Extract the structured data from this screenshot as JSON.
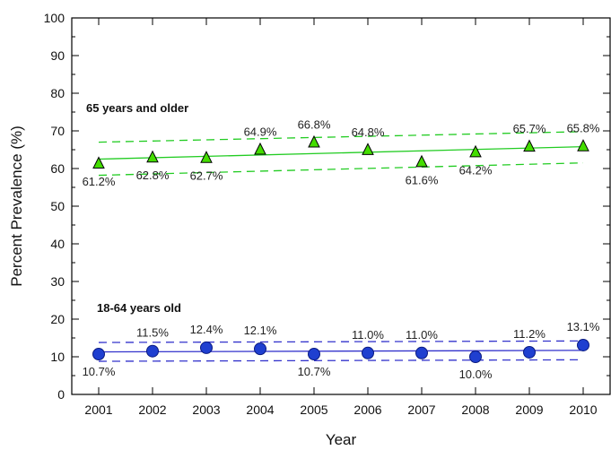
{
  "chart_data": {
    "type": "scatter",
    "title": "",
    "xlabel": "Year",
    "ylabel": "Percent Prevalence (%)",
    "x": [
      2001,
      2002,
      2003,
      2004,
      2005,
      2006,
      2007,
      2008,
      2009,
      2010
    ],
    "xlim": [
      2000.5,
      2010.5
    ],
    "ylim": [
      0,
      100
    ],
    "yticks": [
      0,
      10,
      20,
      30,
      40,
      50,
      60,
      70,
      80,
      90,
      100
    ],
    "grid": false,
    "series": [
      {
        "name": "65 years and older",
        "marker": "triangle",
        "color": "#22cc22",
        "marker_color": "#44dd00",
        "values": [
          61.2,
          62.8,
          62.7,
          64.9,
          66.8,
          64.8,
          61.6,
          64.2,
          65.7,
          65.8
        ],
        "labels": [
          "61.2%",
          "62.8%",
          "62.7%",
          "64.9%",
          "66.8%",
          "64.8%",
          "61.6%",
          "64.2%",
          "65.7%",
          "65.8%"
        ],
        "label_position": [
          "below",
          "below",
          "below",
          "above",
          "above",
          "above",
          "below",
          "below",
          "above",
          "above"
        ],
        "trend": [
          62.5,
          65.8
        ],
        "ci_upper": [
          67.0,
          69.8
        ],
        "ci_lower": [
          58.2,
          61.5
        ]
      },
      {
        "name": "18-64 years old",
        "marker": "circle",
        "color": "#3333cc",
        "marker_color": "#1f3fd0",
        "values": [
          10.7,
          11.5,
          12.4,
          12.1,
          10.7,
          11.0,
          11.0,
          10.0,
          11.2,
          13.1
        ],
        "labels": [
          "10.7%",
          "11.5%",
          "12.4%",
          "12.1%",
          "10.7%",
          "11.0%",
          "11.0%",
          "10.0%",
          "11.2%",
          "13.1%"
        ],
        "label_position": [
          "below",
          "above",
          "above",
          "above",
          "below",
          "above",
          "above",
          "below",
          "above",
          "above"
        ],
        "trend": [
          11.3,
          11.7
        ],
        "ci_upper": [
          13.8,
          14.2
        ],
        "ci_lower": [
          8.8,
          9.2
        ]
      }
    ]
  }
}
